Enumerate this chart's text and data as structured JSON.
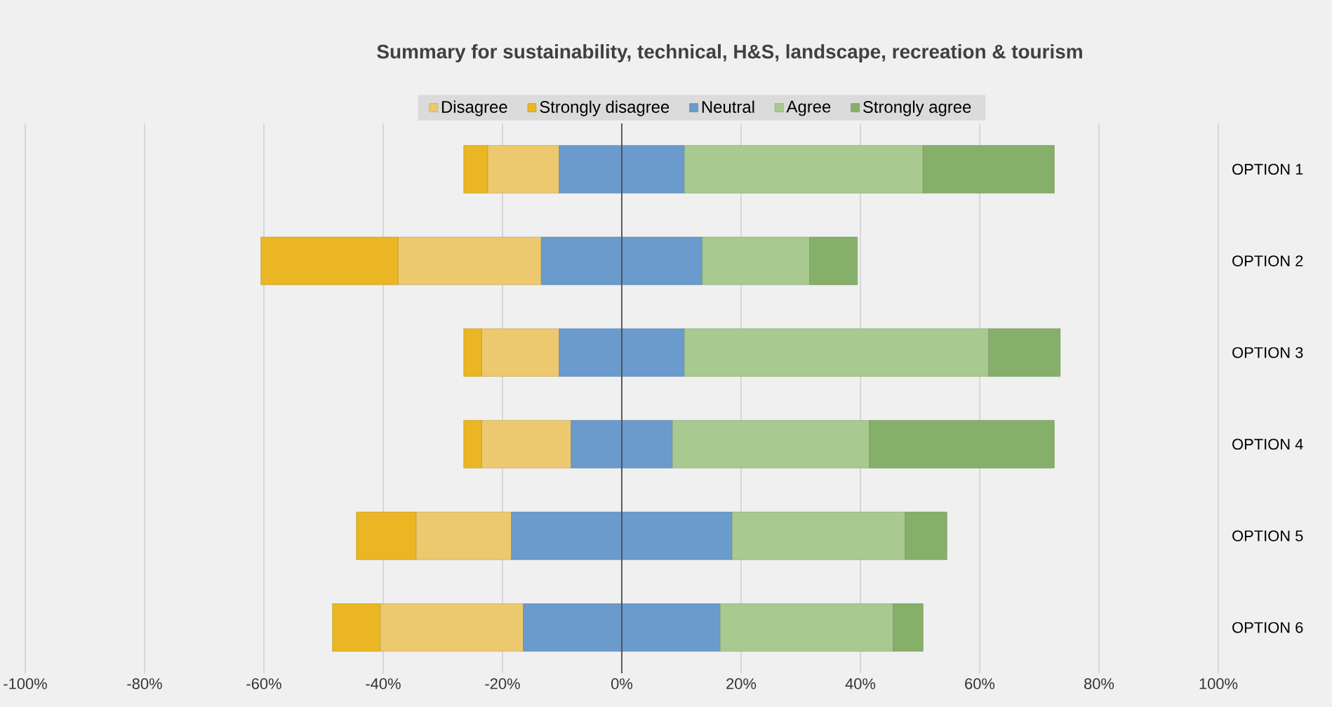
{
  "chart_data": {
    "type": "bar",
    "orientation": "horizontal",
    "title": "Summary for sustainability, technical, H&S, landscape, recreation & tourism",
    "categories": [
      "OPTION 1",
      "OPTION 2",
      "OPTION 3",
      "OPTION 4",
      "OPTION 5",
      "OPTION 6"
    ],
    "series": [
      {
        "name": "Disagree",
        "color": "#ecc96e",
        "values": [
          -12,
          -24,
          -13,
          -15,
          -16,
          -24
        ],
        "base": [
          -10.5,
          -13.5,
          -10.5,
          -8.5,
          -18.5,
          -16.5
        ]
      },
      {
        "name": "Strongly disagree",
        "color": "#eab624",
        "values": [
          -4,
          -23,
          -3,
          -3,
          -10,
          -8
        ],
        "base": [
          -22.5,
          -37.5,
          -23.5,
          -23.5,
          -34.5,
          -40.5
        ]
      },
      {
        "name": "Neutral",
        "color": "#6a9bcc",
        "values": [
          21,
          27,
          21,
          17,
          37,
          33
        ],
        "base": [
          -10.5,
          -13.5,
          -10.5,
          -8.5,
          -18.5,
          -16.5
        ]
      },
      {
        "name": "Agree",
        "color": "#a8c98f",
        "values": [
          40,
          18,
          51,
          33,
          29,
          29
        ],
        "base": [
          10.5,
          13.5,
          10.5,
          8.5,
          18.5,
          16.5
        ]
      },
      {
        "name": "Strongly agree",
        "color": "#86b06a",
        "values": [
          22,
          8,
          12,
          31,
          7,
          5
        ],
        "base": [
          50.5,
          31.5,
          61.5,
          41.5,
          47.5,
          45.5
        ]
      }
    ],
    "xlim": [
      -100,
      100
    ],
    "xticks": [
      {
        "value": -100,
        "label": "-100%"
      },
      {
        "value": -80,
        "label": "-80%"
      },
      {
        "value": -60,
        "label": "-60%"
      },
      {
        "value": -40,
        "label": "-40%"
      },
      {
        "value": -20,
        "label": "-20%"
      },
      {
        "value": 0,
        "label": "0%"
      },
      {
        "value": 20,
        "label": "20%"
      },
      {
        "value": 40,
        "label": "40%"
      },
      {
        "value": 60,
        "label": "60%"
      },
      {
        "value": 80,
        "label": "80%"
      },
      {
        "value": 100,
        "label": "100%"
      }
    ],
    "grid": "x",
    "legend": "top"
  }
}
